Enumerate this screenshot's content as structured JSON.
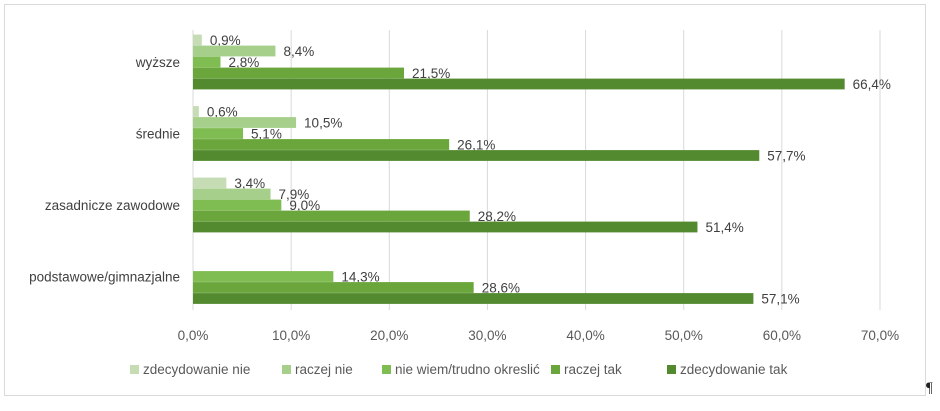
{
  "pilcrow": "¶",
  "chart_data": {
    "type": "bar",
    "orientation": "horizontal",
    "title": "",
    "xlabel": "",
    "ylabel": "",
    "xlim": [
      0,
      70
    ],
    "x_ticks": [
      "0,0%",
      "10,0%",
      "20,0%",
      "30,0%",
      "40,0%",
      "50,0%",
      "60,0%",
      "70,0%"
    ],
    "x_tick_values": [
      0,
      10,
      20,
      30,
      40,
      50,
      60,
      70
    ],
    "grid": true,
    "legend_position": "bottom",
    "categories": [
      "wyższe",
      "średnie",
      "zasadnicze zawodowe",
      "podstawowe/gimnazjalne"
    ],
    "series": [
      {
        "name": "zdecydowanie nie",
        "color": "#c5dcb5",
        "values": [
          0.9,
          0.6,
          3.4,
          null
        ],
        "labels": [
          "0,9%",
          "0,6%",
          "3,4%",
          ""
        ]
      },
      {
        "name": "raczej nie",
        "color": "#a5cf8a",
        "values": [
          8.4,
          10.5,
          7.9,
          null
        ],
        "labels": [
          "8,4%",
          "10,5%",
          "7,9%",
          ""
        ]
      },
      {
        "name": "nie wiem/trudno okreslić",
        "color": "#7fbc52",
        "values": [
          2.8,
          5.1,
          9.0,
          14.3
        ],
        "labels": [
          "2,8%",
          "5,1%",
          "9,0%",
          "14,3%"
        ]
      },
      {
        "name": "raczej tak",
        "color": "#6aa63b",
        "values": [
          21.5,
          26.1,
          28.2,
          28.6
        ],
        "labels": [
          "21,5%",
          "26,1%",
          "28,2%",
          "28,6%"
        ]
      },
      {
        "name": "zdecydowanie tak",
        "color": "#548a2f",
        "values": [
          66.4,
          57.7,
          51.4,
          57.1
        ],
        "labels": [
          "66,4%",
          "57,7%",
          "51,4%",
          "57,1%"
        ]
      }
    ]
  }
}
